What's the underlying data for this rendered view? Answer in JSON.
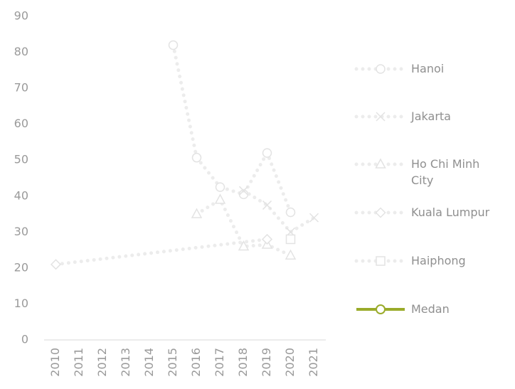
{
  "chart_data": {
    "type": "line",
    "categories": [
      "2010",
      "2011",
      "2012",
      "2013",
      "2014",
      "2015",
      "2016",
      "2017",
      "2018",
      "2019",
      "2020",
      "2021"
    ],
    "ylim": [
      0,
      90
    ],
    "yticks": [
      0,
      10,
      20,
      30,
      40,
      50,
      60,
      70,
      80,
      90
    ],
    "span_gaps": true,
    "legend": "right",
    "series": [
      {
        "name": "Hanoi",
        "color": "#ececec",
        "marker": "circle",
        "line": "dotted",
        "values": [
          null,
          null,
          null,
          null,
          null,
          82,
          50.7,
          42.5,
          40.5,
          52,
          35.5,
          null
        ]
      },
      {
        "name": "Jakarta",
        "color": "#ececec",
        "marker": "x",
        "line": "dotted",
        "values": [
          null,
          null,
          null,
          null,
          null,
          null,
          null,
          null,
          41.5,
          37.5,
          30,
          34
        ]
      },
      {
        "name": "Ho Chi Minh City",
        "color": "#ececec",
        "marker": "triangle",
        "line": "dotted",
        "values": [
          null,
          null,
          null,
          null,
          null,
          null,
          35,
          39,
          26,
          26.5,
          23.5,
          null
        ]
      },
      {
        "name": "Kuala Lumpur",
        "color": "#ececec",
        "marker": "diamond",
        "line": "dotted",
        "values": [
          21,
          null,
          null,
          null,
          null,
          null,
          null,
          null,
          null,
          28,
          null,
          null
        ]
      },
      {
        "name": "Haiphong",
        "color": "#ececec",
        "marker": "square",
        "line": "dotted",
        "values": [
          null,
          null,
          null,
          null,
          null,
          null,
          null,
          null,
          null,
          null,
          28,
          null
        ]
      },
      {
        "name": "Medan",
        "color": "#9aab2a",
        "marker": "circle",
        "line": "solid",
        "values": [
          null,
          null,
          null,
          null,
          null,
          null,
          null,
          null,
          null,
          null,
          null,
          null
        ]
      }
    ]
  }
}
